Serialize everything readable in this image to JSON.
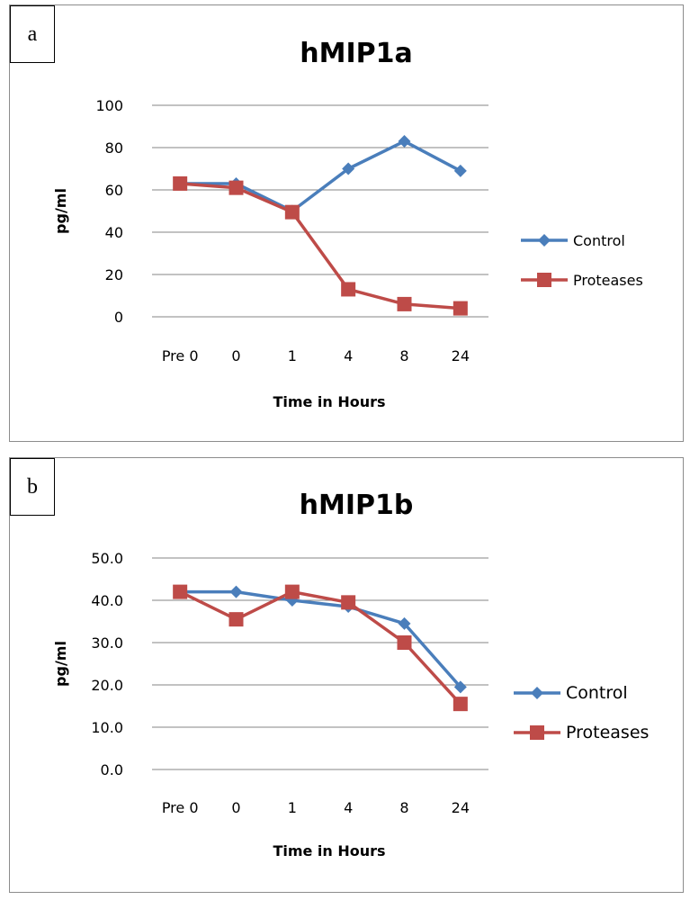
{
  "panels": [
    {
      "letter": "a"
    },
    {
      "letter": "b"
    }
  ],
  "colors": {
    "control": "#4a7ebb",
    "proteases": "#be4b48",
    "grid": "#868686"
  },
  "chart_data": [
    {
      "type": "line",
      "title": "hMIP1a",
      "xlabel": "Time in Hours",
      "ylabel": "pg/ml",
      "categories": [
        "Pre 0",
        "0",
        "1",
        "4",
        "8",
        "24"
      ],
      "ylim": [
        0,
        100
      ],
      "yticks": [
        "0",
        "20",
        "40",
        "60",
        "80",
        "100"
      ],
      "series": [
        {
          "name": "Control",
          "marker": "diamond",
          "values": [
            63,
            63,
            50,
            70,
            83,
            69
          ]
        },
        {
          "name": "Proteases",
          "marker": "square",
          "values": [
            63,
            61,
            49.5,
            13,
            6,
            4
          ]
        }
      ],
      "legend": "right",
      "grid": true
    },
    {
      "type": "line",
      "title": "hMIP1b",
      "xlabel": "Time in Hours",
      "ylabel": "pg/ml",
      "categories": [
        "Pre 0",
        "0",
        "1",
        "4",
        "8",
        "24"
      ],
      "ylim": [
        0,
        50
      ],
      "yticks": [
        "0.0",
        "10.0",
        "20.0",
        "30.0",
        "40.0",
        "50.0"
      ],
      "series": [
        {
          "name": "Control",
          "marker": "diamond",
          "values": [
            42,
            42,
            40,
            38.5,
            34.5,
            19.5
          ]
        },
        {
          "name": "Proteases",
          "marker": "square",
          "values": [
            42,
            35.5,
            42,
            39.5,
            30,
            15.5
          ]
        }
      ],
      "legend": "right",
      "grid": true
    }
  ]
}
